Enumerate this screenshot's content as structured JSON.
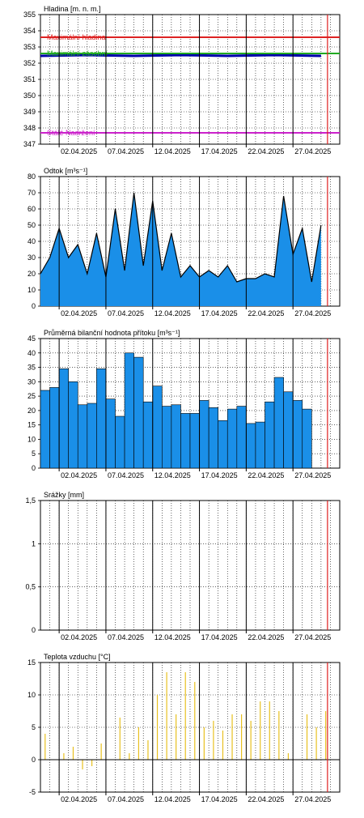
{
  "dates": [
    "02.04.2025",
    "07.04.2025",
    "12.04.2025",
    "17.04.2025",
    "22.04.2025",
    "27.04.2025"
  ],
  "chart_data": [
    {
      "type": "line",
      "title": "Hladina [m. n. m.]",
      "ylim": [
        347,
        355
      ],
      "yticks": [
        347,
        348,
        349,
        350,
        351,
        352,
        353,
        354,
        355
      ],
      "xlim": [
        "31.03.2025",
        "02.05.2025"
      ],
      "current_day": "30.04.2025",
      "reference_lines": [
        {
          "label": "Maximální hladina",
          "value": 353.6,
          "color": "#dd2222"
        },
        {
          "label": "Maximální zásobní",
          "value": 352.6,
          "color": "#22aa22"
        },
        {
          "label": "Stálé Nadržení",
          "value": 347.7,
          "color": "#cc22cc"
        }
      ],
      "series": [
        {
          "x": [
            "31.03.2025",
            "05.04.2025",
            "10.04.2025",
            "15.04.2025",
            "20.04.2025",
            "25.04.2025",
            "30.04.2025"
          ],
          "values": [
            352.45,
            352.5,
            352.45,
            352.5,
            352.45,
            352.5,
            352.45
          ],
          "color": "#0000aa"
        }
      ]
    },
    {
      "type": "area",
      "title": "Odtok [m³s⁻¹]",
      "ylim": [
        0,
        80
      ],
      "yticks": [
        0,
        10,
        20,
        30,
        40,
        50,
        60,
        70,
        80
      ],
      "xlim": [
        "31.03.2025",
        "02.05.2025"
      ],
      "current_day": "30.04.2025",
      "series": [
        {
          "x": [
            "31.03.2025",
            "01.04.2025",
            "02.04.2025",
            "03.04.2025",
            "04.04.2025",
            "05.04.2025",
            "06.04.2025",
            "07.04.2025",
            "08.04.2025",
            "09.04.2025",
            "10.04.2025",
            "11.04.2025",
            "12.04.2025",
            "13.04.2025",
            "14.04.2025",
            "15.04.2025",
            "16.04.2025",
            "17.04.2025",
            "18.04.2025",
            "19.04.2025",
            "20.04.2025",
            "21.04.2025",
            "22.04.2025",
            "23.04.2025",
            "24.04.2025",
            "25.04.2025",
            "26.04.2025",
            "27.04.2025",
            "28.04.2025",
            "29.04.2025",
            "30.04.2025"
          ],
          "values": [
            20,
            30,
            48,
            30,
            38,
            20,
            45,
            18,
            60,
            22,
            70,
            25,
            65,
            22,
            45,
            18,
            25,
            18,
            22,
            18,
            25,
            15,
            17,
            17,
            20,
            18,
            68,
            32,
            48,
            15,
            50
          ],
          "color": "#1a8fe8"
        }
      ]
    },
    {
      "type": "bar",
      "title": "Průměrná bilanční hodnota přítoku   [m³s⁻¹]",
      "ylim": [
        0,
        45
      ],
      "yticks": [
        0,
        5,
        10,
        15,
        20,
        25,
        30,
        35,
        40,
        45
      ],
      "xlim": [
        "31.03.2025",
        "02.05.2025"
      ],
      "current_day": "30.04.2025",
      "series": [
        {
          "x": [
            "31.03.2025",
            "01.04.2025",
            "02.04.2025",
            "03.04.2025",
            "04.04.2025",
            "05.04.2025",
            "06.04.2025",
            "07.04.2025",
            "08.04.2025",
            "09.04.2025",
            "10.04.2025",
            "11.04.2025",
            "12.04.2025",
            "13.04.2025",
            "14.04.2025",
            "15.04.2025",
            "16.04.2025",
            "17.04.2025",
            "18.04.2025",
            "19.04.2025",
            "20.04.2025",
            "21.04.2025",
            "22.04.2025",
            "23.04.2025",
            "24.04.2025",
            "25.04.2025",
            "26.04.2025",
            "27.04.2025",
            "28.04.2025",
            "29.04.2025",
            "30.04.2025"
          ],
          "values": [
            27,
            28,
            34.5,
            30,
            22,
            22.5,
            34.5,
            24,
            18,
            40,
            38.5,
            23,
            28.5,
            21.5,
            22,
            19,
            19,
            23.5,
            21,
            16.5,
            20.5,
            21.5,
            15.5,
            16,
            23,
            31.5,
            26.5,
            23.5,
            20.5,
            0,
            0
          ],
          "color": "#1a8fe8"
        }
      ]
    },
    {
      "type": "bar",
      "title": "Srážky [mm]",
      "ylim": [
        0,
        1.5
      ],
      "yticks": [
        "0",
        "0,5",
        "1",
        "1,5"
      ],
      "ytick_values": [
        0,
        0.5,
        1,
        1.5
      ],
      "xlim": [
        "31.03.2025",
        "02.05.2025"
      ],
      "current_day": "30.04.2025",
      "series": [
        {
          "x": [],
          "values": [],
          "color": "#1a8fe8"
        }
      ]
    },
    {
      "type": "bar",
      "title": "Teplota vzduchu [°C]",
      "ylim": [
        -5,
        15
      ],
      "yticks": [
        -5,
        0,
        5,
        10,
        15
      ],
      "xlim": [
        "31.03.2025",
        "02.05.2025"
      ],
      "current_day": "30.04.2025",
      "series": [
        {
          "x": [
            "31.03.2025",
            "01.04.2025",
            "02.04.2025",
            "03.04.2025",
            "04.04.2025",
            "05.04.2025",
            "06.04.2025",
            "07.04.2025",
            "08.04.2025",
            "09.04.2025",
            "10.04.2025",
            "11.04.2025",
            "12.04.2025",
            "13.04.2025",
            "14.04.2025",
            "15.04.2025",
            "16.04.2025",
            "17.04.2025",
            "18.04.2025",
            "19.04.2025",
            "20.04.2025",
            "21.04.2025",
            "22.04.2025",
            "23.04.2025",
            "24.04.2025",
            "25.04.2025",
            "26.04.2025",
            "27.04.2025",
            "28.04.2025",
            "29.04.2025",
            "30.04.2025"
          ],
          "values": [
            4,
            0,
            1,
            2,
            -1.5,
            -1,
            2.5,
            0,
            6.5,
            1,
            5,
            3,
            10,
            13.5,
            7,
            13.5,
            12,
            5,
            6,
            4.5,
            7,
            7,
            6,
            9,
            9,
            7.5,
            1,
            0,
            7,
            5,
            7.5
          ],
          "color": "#e8c020"
        }
      ]
    }
  ]
}
